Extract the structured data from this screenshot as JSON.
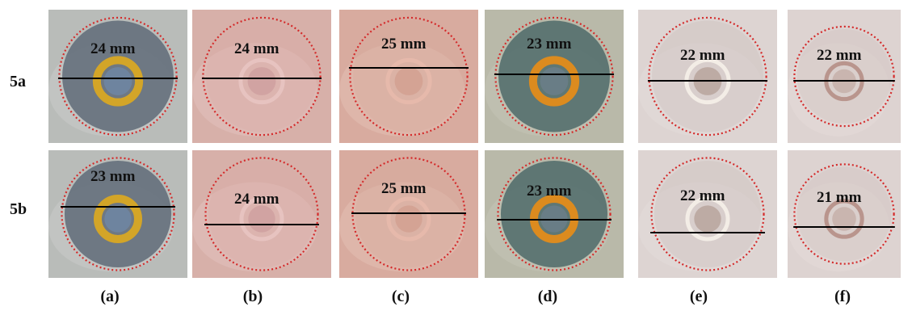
{
  "rows": [
    {
      "label": "5a"
    },
    {
      "label": "5b"
    }
  ],
  "columns": [
    {
      "label": "(a)",
      "style": "yellow"
    },
    {
      "label": "(b)",
      "style": "pink"
    },
    {
      "label": "(c)",
      "style": "salmon"
    },
    {
      "label": "(d)",
      "style": "orange"
    },
    {
      "label": "(e)",
      "style": "pale"
    },
    {
      "label": "(f)",
      "style": "paleBrown"
    }
  ],
  "measurements": [
    [
      "24 mm",
      "24 mm",
      "25 mm",
      "23 mm",
      "22 mm",
      "22 mm"
    ],
    [
      "23 mm",
      "24 mm",
      "25 mm",
      "23 mm",
      "22 mm",
      "21 mm"
    ]
  ],
  "colors": {
    "circle_outline": "#d42a2a",
    "diameter_line": "#000000"
  }
}
